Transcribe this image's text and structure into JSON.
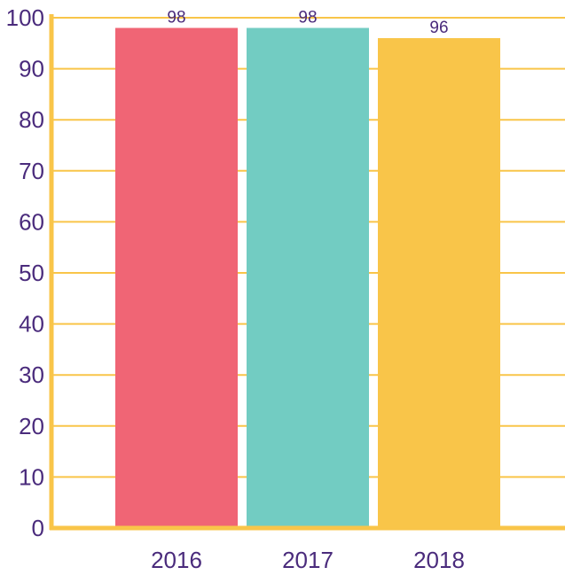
{
  "colors": {
    "axis": "#F9C549",
    "grid": "#F9C549",
    "text": "#4A2B7C",
    "bars": [
      "#F06575",
      "#72CCC2",
      "#F9C549"
    ]
  },
  "chart_data": {
    "type": "bar",
    "title": "",
    "xlabel": "",
    "ylabel": "",
    "categories": [
      "2016",
      "2017",
      "2018"
    ],
    "values": [
      98,
      98,
      96
    ],
    "data_labels": [
      "98",
      "98",
      "96"
    ],
    "ylim": [
      0,
      100
    ],
    "yticks": [
      0,
      10,
      20,
      30,
      40,
      50,
      60,
      70,
      80,
      90,
      100
    ],
    "ytick_labels": [
      "0",
      "10",
      "20",
      "30",
      "40",
      "50",
      "60",
      "70",
      "80",
      "90",
      "100"
    ],
    "grid": true,
    "legend": "none"
  }
}
